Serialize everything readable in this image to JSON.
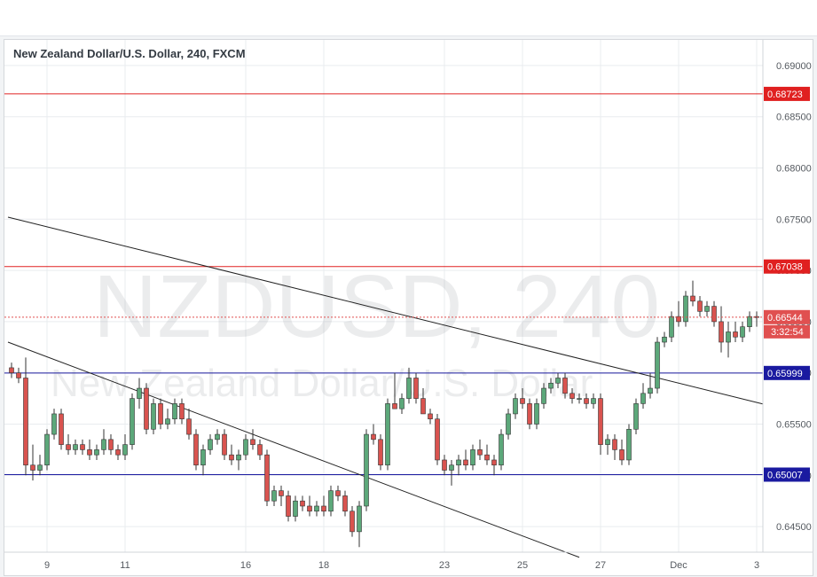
{
  "chart_data": {
    "type": "candlestick",
    "title": "New Zealand Dollar/U.S. Dollar, 240, FXCM",
    "watermark": {
      "symbol": "NZDUSD, 240",
      "name": "New Zealand Dollar/U.S. Dollar"
    },
    "ylim": [
      0.6425,
      0.6925
    ],
    "y_ticks": [
      "0.69000",
      "0.68500",
      "0.68000",
      "0.67500",
      "0.67000",
      "0.66500",
      "0.66000",
      "0.65500",
      "0.65000",
      "0.64500"
    ],
    "y_tick_values": [
      0.69,
      0.685,
      0.68,
      0.675,
      0.67,
      0.665,
      0.66,
      0.655,
      0.65,
      0.645
    ],
    "x_ticks": [
      {
        "label": "9",
        "index": 5
      },
      {
        "label": "11",
        "index": 16
      },
      {
        "label": "16",
        "index": 33
      },
      {
        "label": "18",
        "index": 44
      },
      {
        "label": "23",
        "index": 61
      },
      {
        "label": "25",
        "index": 72
      },
      {
        "label": "27",
        "index": 83
      },
      {
        "label": "Dec",
        "index": 94
      },
      {
        "label": "3",
        "index": 105
      }
    ],
    "x_count": 108,
    "candles": [
      [
        0.6605,
        0.661,
        0.6595,
        0.66
      ],
      [
        0.66,
        0.6605,
        0.659,
        0.6595
      ],
      [
        0.6595,
        0.6615,
        0.65,
        0.651
      ],
      [
        0.651,
        0.653,
        0.6495,
        0.6505
      ],
      [
        0.6505,
        0.652,
        0.65,
        0.651
      ],
      [
        0.651,
        0.6545,
        0.6505,
        0.654
      ],
      [
        0.654,
        0.6565,
        0.6535,
        0.656
      ],
      [
        0.656,
        0.6565,
        0.6525,
        0.653
      ],
      [
        0.653,
        0.654,
        0.652,
        0.6525
      ],
      [
        0.6525,
        0.6535,
        0.652,
        0.653
      ],
      [
        0.653,
        0.6535,
        0.652,
        0.6525
      ],
      [
        0.6525,
        0.6535,
        0.6515,
        0.652
      ],
      [
        0.652,
        0.653,
        0.6515,
        0.6525
      ],
      [
        0.6525,
        0.6545,
        0.652,
        0.6535
      ],
      [
        0.6535,
        0.654,
        0.652,
        0.6525
      ],
      [
        0.6525,
        0.653,
        0.6515,
        0.652
      ],
      [
        0.652,
        0.654,
        0.6515,
        0.653
      ],
      [
        0.653,
        0.658,
        0.6525,
        0.6575
      ],
      [
        0.6575,
        0.6595,
        0.6565,
        0.6585
      ],
      [
        0.6585,
        0.659,
        0.654,
        0.6545
      ],
      [
        0.6545,
        0.6575,
        0.654,
        0.657
      ],
      [
        0.657,
        0.6575,
        0.6545,
        0.655
      ],
      [
        0.655,
        0.6565,
        0.6545,
        0.6555
      ],
      [
        0.6555,
        0.6575,
        0.655,
        0.657
      ],
      [
        0.657,
        0.6575,
        0.655,
        0.6555
      ],
      [
        0.6555,
        0.6565,
        0.6535,
        0.654
      ],
      [
        0.654,
        0.6545,
        0.6505,
        0.651
      ],
      [
        0.651,
        0.653,
        0.65,
        0.6525
      ],
      [
        0.6525,
        0.654,
        0.652,
        0.6535
      ],
      [
        0.6535,
        0.6545,
        0.653,
        0.654
      ],
      [
        0.654,
        0.6545,
        0.6515,
        0.652
      ],
      [
        0.652,
        0.653,
        0.651,
        0.6515
      ],
      [
        0.6515,
        0.6525,
        0.6505,
        0.652
      ],
      [
        0.652,
        0.654,
        0.6515,
        0.6535
      ],
      [
        0.6535,
        0.6545,
        0.6525,
        0.653
      ],
      [
        0.653,
        0.6535,
        0.6515,
        0.652
      ],
      [
        0.652,
        0.6525,
        0.647,
        0.6475
      ],
      [
        0.6475,
        0.649,
        0.647,
        0.6485
      ],
      [
        0.6485,
        0.649,
        0.647,
        0.648
      ],
      [
        0.648,
        0.6485,
        0.6455,
        0.646
      ],
      [
        0.646,
        0.648,
        0.6455,
        0.6475
      ],
      [
        0.6475,
        0.648,
        0.6465,
        0.647
      ],
      [
        0.647,
        0.648,
        0.646,
        0.6465
      ],
      [
        0.6465,
        0.6475,
        0.646,
        0.647
      ],
      [
        0.647,
        0.648,
        0.646,
        0.6465
      ],
      [
        0.6465,
        0.649,
        0.646,
        0.6485
      ],
      [
        0.6485,
        0.649,
        0.6475,
        0.648
      ],
      [
        0.648,
        0.6485,
        0.646,
        0.6465
      ],
      [
        0.6465,
        0.647,
        0.644,
        0.6445
      ],
      [
        0.6445,
        0.6475,
        0.643,
        0.647
      ],
      [
        0.647,
        0.6545,
        0.6465,
        0.654
      ],
      [
        0.654,
        0.655,
        0.653,
        0.6535
      ],
      [
        0.6535,
        0.654,
        0.6505,
        0.651
      ],
      [
        0.651,
        0.6575,
        0.6505,
        0.657
      ],
      [
        0.657,
        0.66,
        0.6565,
        0.6565
      ],
      [
        0.6565,
        0.658,
        0.656,
        0.6575
      ],
      [
        0.6575,
        0.6605,
        0.657,
        0.6595
      ],
      [
        0.6595,
        0.66,
        0.657,
        0.6575
      ],
      [
        0.6575,
        0.6585,
        0.656,
        0.656
      ],
      [
        0.656,
        0.6565,
        0.655,
        0.6555
      ],
      [
        0.6555,
        0.656,
        0.651,
        0.6515
      ],
      [
        0.6515,
        0.652,
        0.65,
        0.6505
      ],
      [
        0.6505,
        0.6515,
        0.649,
        0.651
      ],
      [
        0.651,
        0.652,
        0.65,
        0.6515
      ],
      [
        0.6515,
        0.6525,
        0.6505,
        0.651
      ],
      [
        0.651,
        0.653,
        0.6505,
        0.6525
      ],
      [
        0.6525,
        0.6535,
        0.6515,
        0.652
      ],
      [
        0.652,
        0.653,
        0.651,
        0.6515
      ],
      [
        0.6515,
        0.652,
        0.65,
        0.651
      ],
      [
        0.651,
        0.6545,
        0.6505,
        0.654
      ],
      [
        0.654,
        0.6565,
        0.6535,
        0.656
      ],
      [
        0.656,
        0.658,
        0.6555,
        0.6575
      ],
      [
        0.6575,
        0.6585,
        0.6565,
        0.657
      ],
      [
        0.657,
        0.6575,
        0.6545,
        0.655
      ],
      [
        0.655,
        0.6575,
        0.6545,
        0.657
      ],
      [
        0.657,
        0.659,
        0.6565,
        0.6585
      ],
      [
        0.6585,
        0.6595,
        0.658,
        0.659
      ],
      [
        0.659,
        0.66,
        0.6585,
        0.6595
      ],
      [
        0.6595,
        0.66,
        0.6575,
        0.658
      ],
      [
        0.658,
        0.6585,
        0.657,
        0.6575
      ],
      [
        0.6575,
        0.658,
        0.657,
        0.6575
      ],
      [
        0.6575,
        0.658,
        0.6565,
        0.657
      ],
      [
        0.657,
        0.658,
        0.6565,
        0.6575
      ],
      [
        0.6575,
        0.658,
        0.652,
        0.653
      ],
      [
        0.653,
        0.654,
        0.652,
        0.6535
      ],
      [
        0.6535,
        0.654,
        0.6515,
        0.6525
      ],
      [
        0.6525,
        0.6535,
        0.651,
        0.6515
      ],
      [
        0.6515,
        0.655,
        0.651,
        0.6545
      ],
      [
        0.6545,
        0.6575,
        0.654,
        0.657
      ],
      [
        0.657,
        0.659,
        0.6565,
        0.658
      ],
      [
        0.658,
        0.66,
        0.6575,
        0.6585
      ],
      [
        0.6585,
        0.6635,
        0.658,
        0.663
      ],
      [
        0.663,
        0.664,
        0.6625,
        0.6635
      ],
      [
        0.6635,
        0.666,
        0.663,
        0.6655
      ],
      [
        0.6655,
        0.667,
        0.6645,
        0.665
      ],
      [
        0.665,
        0.668,
        0.6645,
        0.6675
      ],
      [
        0.6675,
        0.669,
        0.6665,
        0.667
      ],
      [
        0.667,
        0.6675,
        0.6655,
        0.666
      ],
      [
        0.666,
        0.667,
        0.6655,
        0.6665
      ],
      [
        0.6665,
        0.667,
        0.6645,
        0.665
      ],
      [
        0.665,
        0.6665,
        0.662,
        0.663
      ],
      [
        0.663,
        0.665,
        0.6615,
        0.664
      ],
      [
        0.664,
        0.665,
        0.663,
        0.6635
      ],
      [
        0.6635,
        0.665,
        0.663,
        0.6645
      ],
      [
        0.6645,
        0.666,
        0.664,
        0.6655
      ],
      [
        0.6655,
        0.666,
        0.6645,
        0.6654
      ]
    ],
    "horizontal_levels": [
      {
        "value": 0.68723,
        "label": "0.68723",
        "color": "#e02020"
      },
      {
        "value": 0.67038,
        "label": "0.67038",
        "color": "#e02020"
      },
      {
        "value": 0.65999,
        "label": "0.65999",
        "color": "#1a1aa0"
      },
      {
        "value": 0.65007,
        "label": "0.65007",
        "color": "#1a1aa0"
      }
    ],
    "trendlines": [
      {
        "from": [
          -0.5,
          0.6752
        ],
        "to": [
          108,
          0.6566
        ]
      },
      {
        "from": [
          -0.5,
          0.663
        ],
        "to": [
          80,
          0.642
        ]
      }
    ],
    "last_price": {
      "value": 0.66544,
      "label": "0.66544",
      "countdown": "3:32:54",
      "color": "#e05050"
    },
    "colors": {
      "up": "#5ca87a",
      "down": "#d9534f",
      "wick": "#333333",
      "grid": "#e9ecef"
    },
    "grid": true
  }
}
